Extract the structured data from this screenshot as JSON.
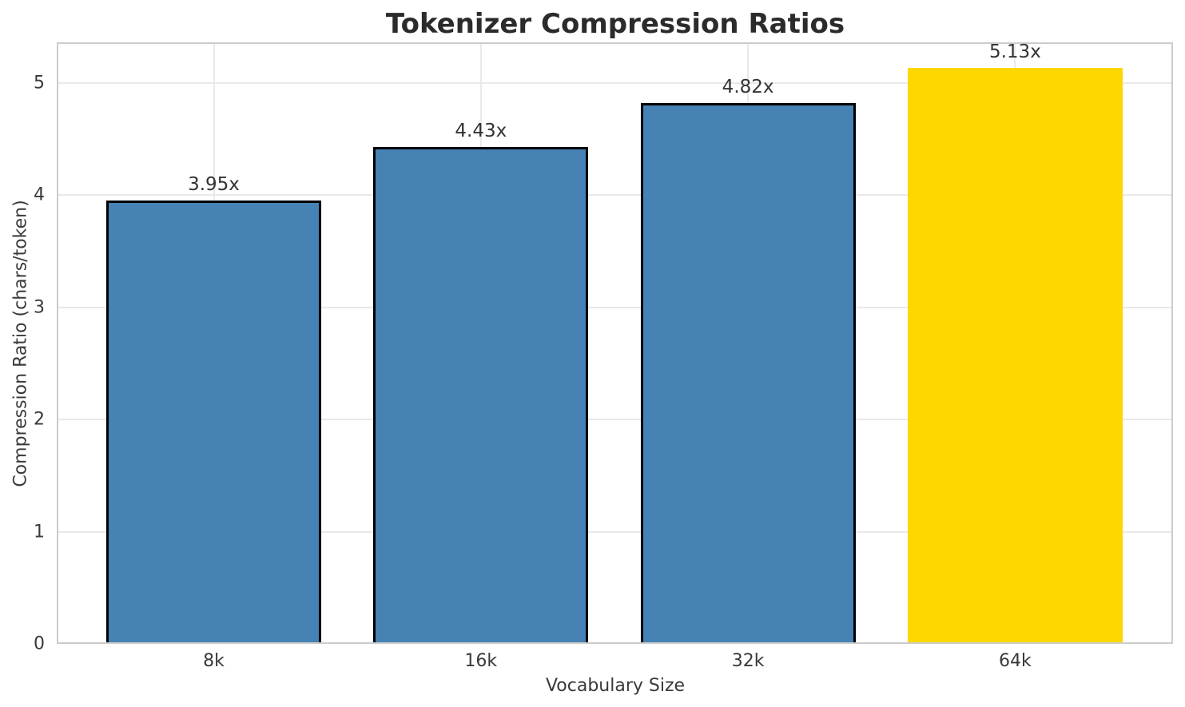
{
  "chart_data": {
    "type": "bar",
    "title": "Tokenizer Compression Ratios",
    "xlabel": "Vocabulary Size",
    "ylabel": "Compression Ratio (chars/token)",
    "categories": [
      "8k",
      "16k",
      "32k",
      "64k"
    ],
    "values": [
      3.95,
      4.43,
      4.82,
      5.13
    ],
    "bar_labels": [
      "3.95x",
      "4.43x",
      "4.82x",
      "5.13x"
    ],
    "yticks": [
      0,
      1,
      2,
      3,
      4,
      5
    ],
    "ylim": [
      0,
      5.36
    ],
    "bar_colors": [
      "#4682B4",
      "#4682B4",
      "#4682B4",
      "#FFD700"
    ],
    "bar_edge_colors": [
      "#000000",
      "#000000",
      "#000000",
      "none"
    ],
    "highlight_index": 3,
    "grid": true,
    "legend": "none",
    "background_color": "#ffffff",
    "grid_color": "#e9e9e9",
    "spine_color": "#cccccc"
  }
}
